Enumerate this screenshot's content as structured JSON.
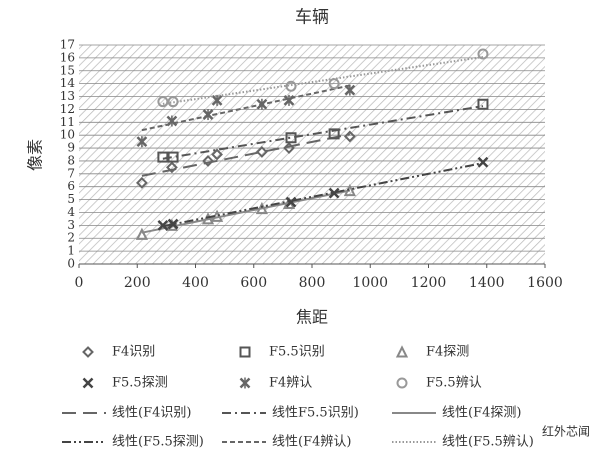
{
  "chart_data": {
    "type": "scatter",
    "title": "车辆",
    "x_label": "焦距",
    "y_label": "像素",
    "xlim": [
      0,
      1600
    ],
    "xticks": [
      0,
      200,
      400,
      600,
      800,
      1000,
      1200,
      1400,
      1600
    ],
    "ylim": [
      0,
      17
    ],
    "yticks": [
      0,
      1,
      2,
      3,
      4,
      5,
      6,
      7,
      8,
      9,
      10,
      11,
      12,
      13,
      14,
      15,
      16,
      17
    ],
    "grid": true,
    "background": "hatched",
    "series": [
      {
        "name": "F4识别",
        "marker": "diamond",
        "color": "#666666",
        "x": [
          216,
          319,
          443,
          474,
          628,
          721,
          930
        ],
        "values": [
          6.3,
          7.5,
          8.0,
          8.5,
          8.7,
          9.0,
          9.9
        ],
        "trend_name": "线性(F4识别)",
        "trend_dash": "14,7"
      },
      {
        "name": "F5.5识别",
        "marker": "square",
        "color": "#555555",
        "x": [
          288,
          323,
          728,
          876,
          1387
        ],
        "values": [
          8.3,
          8.3,
          9.8,
          10.1,
          12.4
        ],
        "trend_name": "线性F5.5识别)",
        "trend_dash": "9,4,2,4"
      },
      {
        "name": "F4探测",
        "marker": "triangle",
        "color": "#888888",
        "x": [
          216,
          319,
          443,
          474,
          628,
          721,
          930
        ],
        "values": [
          2.3,
          3.0,
          3.5,
          3.7,
          4.3,
          4.7,
          5.7
        ],
        "trend_name": "线性(F4探测)",
        "trend_dash": "none"
      },
      {
        "name": "F5.5探测",
        "marker": "x",
        "color": "#444444",
        "x": [
          288,
          323,
          728,
          876,
          1387
        ],
        "values": [
          3.0,
          3.1,
          4.8,
          5.5,
          7.9
        ],
        "trend_name": "线性(F5.5探测)",
        "trend_dash": "9,3,2,3,2,3"
      },
      {
        "name": "F4辨认",
        "marker": "star",
        "color": "#666666",
        "x": [
          216,
          319,
          443,
          474,
          628,
          721,
          930
        ],
        "values": [
          9.5,
          11.1,
          11.6,
          12.7,
          12.4,
          12.7,
          13.5
        ],
        "trend_name": "线性(F4辨认)",
        "trend_dash": "5,3"
      },
      {
        "name": "F5.5辨认",
        "marker": "circle",
        "color": "#999999",
        "x": [
          288,
          323,
          728,
          876,
          1387
        ],
        "values": [
          12.6,
          12.6,
          13.8,
          14.0,
          16.3
        ],
        "trend_name": "线性(F5.5辨认)",
        "trend_dash": "1.5,2"
      }
    ]
  },
  "watermark": "红外芯闻"
}
